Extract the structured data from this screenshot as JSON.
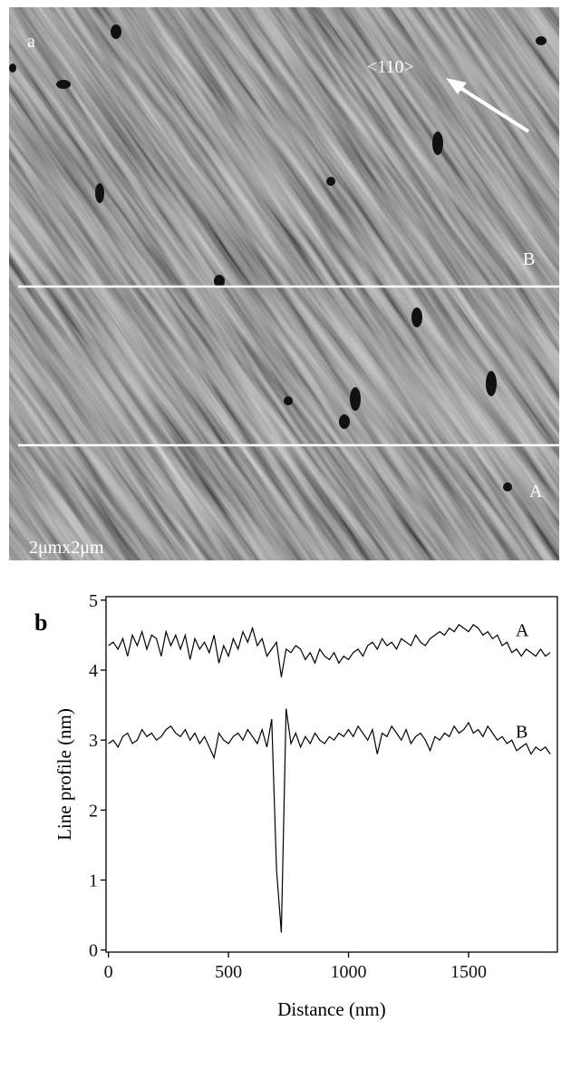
{
  "image": {
    "panel_label": "a",
    "direction": "<110>",
    "line_b": "B",
    "line_a": "A",
    "scale": "2μmx2μm"
  },
  "chart_data": {
    "type": "line",
    "panel_label": "b",
    "xlabel": "Distance (nm)",
    "ylabel": "Line profile (nm)",
    "x": [
      0,
      20,
      40,
      60,
      80,
      100,
      120,
      140,
      160,
      180,
      200,
      220,
      240,
      260,
      280,
      300,
      320,
      340,
      360,
      380,
      400,
      420,
      440,
      460,
      480,
      500,
      520,
      540,
      560,
      580,
      600,
      620,
      640,
      660,
      680,
      700,
      720,
      740,
      760,
      780,
      800,
      820,
      840,
      860,
      880,
      900,
      920,
      940,
      960,
      980,
      1000,
      1020,
      1040,
      1060,
      1080,
      1100,
      1120,
      1140,
      1160,
      1180,
      1200,
      1220,
      1240,
      1260,
      1280,
      1300,
      1320,
      1340,
      1360,
      1380,
      1400,
      1420,
      1440,
      1460,
      1480,
      1500,
      1520,
      1540,
      1560,
      1580,
      1600,
      1620,
      1640,
      1660,
      1680,
      1700,
      1720,
      1740,
      1760,
      1780,
      1800,
      1820,
      1840
    ],
    "series": [
      {
        "name": "A",
        "color": "#000000",
        "values": [
          4.35,
          4.4,
          4.3,
          4.45,
          4.2,
          4.5,
          4.35,
          4.55,
          4.3,
          4.5,
          4.45,
          4.2,
          4.55,
          4.35,
          4.5,
          4.3,
          4.5,
          4.15,
          4.45,
          4.3,
          4.4,
          4.25,
          4.5,
          4.1,
          4.35,
          4.2,
          4.45,
          4.3,
          4.55,
          4.4,
          4.6,
          4.35,
          4.45,
          4.2,
          4.3,
          4.4,
          3.9,
          4.3,
          4.25,
          4.35,
          4.3,
          4.15,
          4.25,
          4.1,
          4.3,
          4.2,
          4.15,
          4.25,
          4.1,
          4.2,
          4.15,
          4.25,
          4.3,
          4.2,
          4.35,
          4.4,
          4.3,
          4.45,
          4.35,
          4.4,
          4.3,
          4.45,
          4.4,
          4.35,
          4.5,
          4.4,
          4.35,
          4.45,
          4.5,
          4.55,
          4.5,
          4.6,
          4.55,
          4.65,
          4.6,
          4.55,
          4.65,
          4.6,
          4.5,
          4.55,
          4.45,
          4.5,
          4.35,
          4.4,
          4.25,
          4.3,
          4.2,
          4.3,
          4.25,
          4.2,
          4.3,
          4.2,
          4.25
        ]
      },
      {
        "name": "B",
        "color": "#000000",
        "values": [
          2.95,
          3.0,
          2.9,
          3.05,
          3.1,
          2.95,
          3.0,
          3.15,
          3.05,
          3.1,
          3.0,
          3.05,
          3.15,
          3.2,
          3.1,
          3.05,
          3.15,
          3.0,
          3.1,
          2.95,
          3.05,
          2.9,
          2.75,
          3.1,
          3.0,
          2.95,
          3.05,
          3.1,
          3.0,
          3.15,
          3.05,
          2.95,
          3.15,
          2.9,
          3.3,
          1.15,
          0.25,
          3.45,
          2.95,
          3.1,
          2.9,
          3.05,
          2.95,
          3.1,
          3.0,
          2.95,
          3.05,
          3.0,
          3.1,
          3.05,
          3.15,
          3.05,
          3.2,
          3.1,
          3.0,
          3.15,
          2.8,
          3.1,
          3.05,
          3.2,
          3.1,
          3.0,
          3.15,
          2.95,
          3.05,
          3.1,
          3.0,
          2.85,
          3.05,
          3.0,
          3.1,
          3.05,
          3.2,
          3.1,
          3.15,
          3.25,
          3.1,
          3.15,
          3.05,
          3.2,
          3.1,
          3.0,
          3.05,
          2.95,
          3.0,
          2.85,
          2.9,
          2.95,
          2.8,
          2.9,
          2.85,
          2.9,
          2.8
        ]
      }
    ],
    "xlim": [
      -10,
      1870
    ],
    "ylim": [
      -0.03,
      5.05
    ],
    "xticks": [
      0,
      500,
      1000,
      1500
    ],
    "yticks": [
      0,
      1,
      2,
      3,
      4,
      5
    ]
  }
}
